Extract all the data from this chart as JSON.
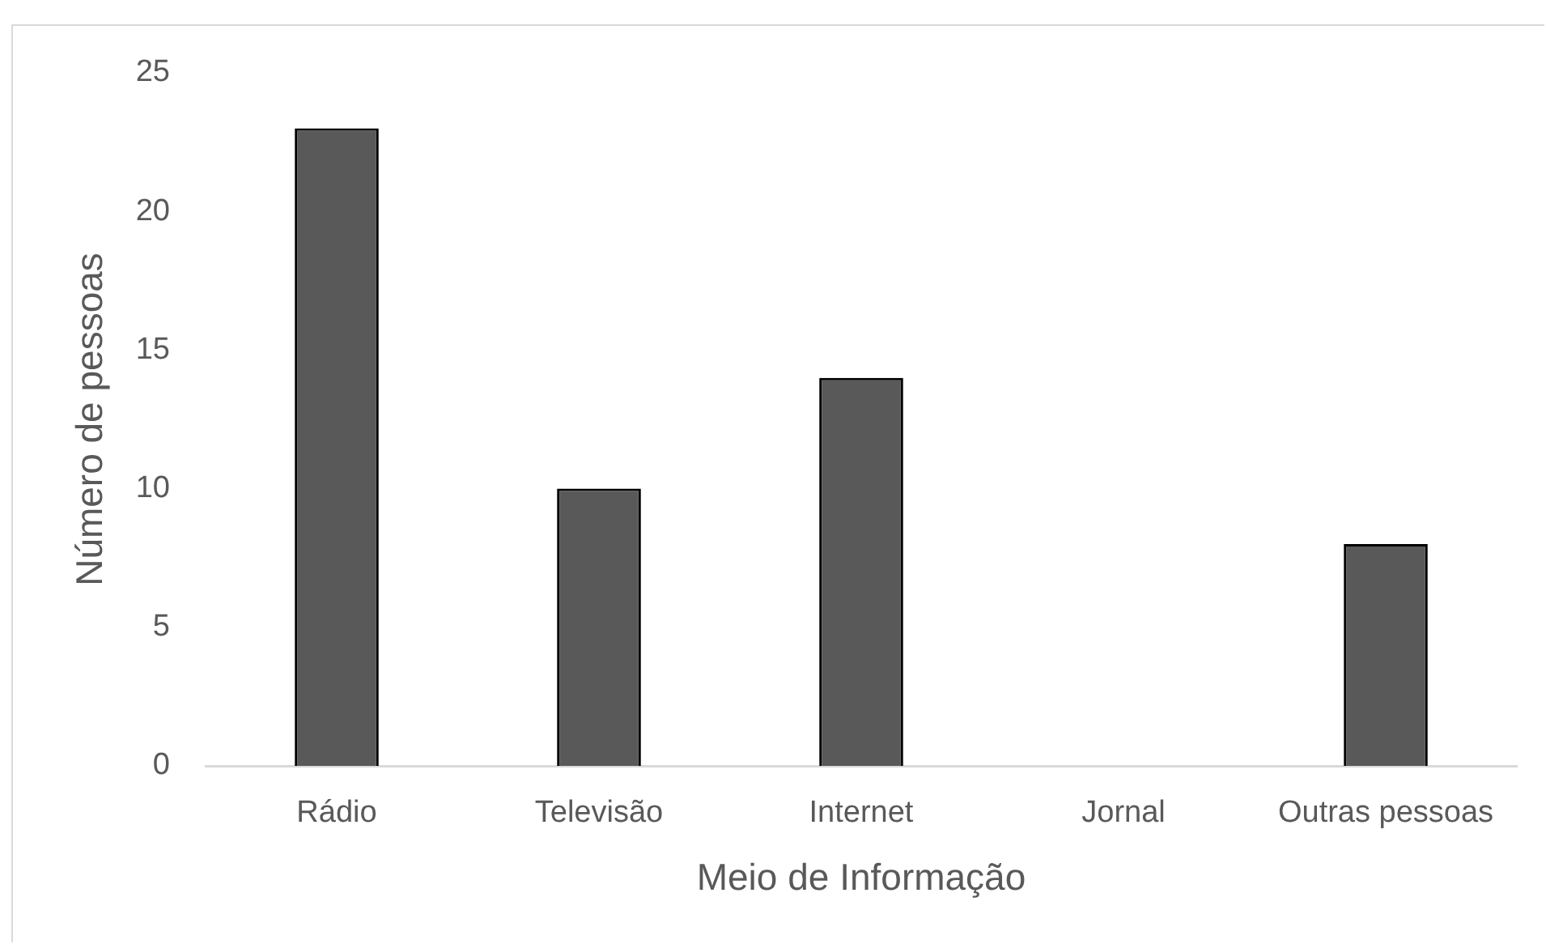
{
  "chart_data": {
    "type": "bar",
    "categories": [
      "Rádio",
      "Televisão",
      "Internet",
      "Jornal",
      "Outras pessoas"
    ],
    "values": [
      23,
      10,
      14,
      0,
      8
    ],
    "color": "#595959",
    "xlabel": "Meio de Informação",
    "ylabel": "Número de pessoas",
    "ylim": [
      0,
      25
    ],
    "yticks": [
      0,
      5,
      10,
      15,
      20,
      25
    ]
  }
}
